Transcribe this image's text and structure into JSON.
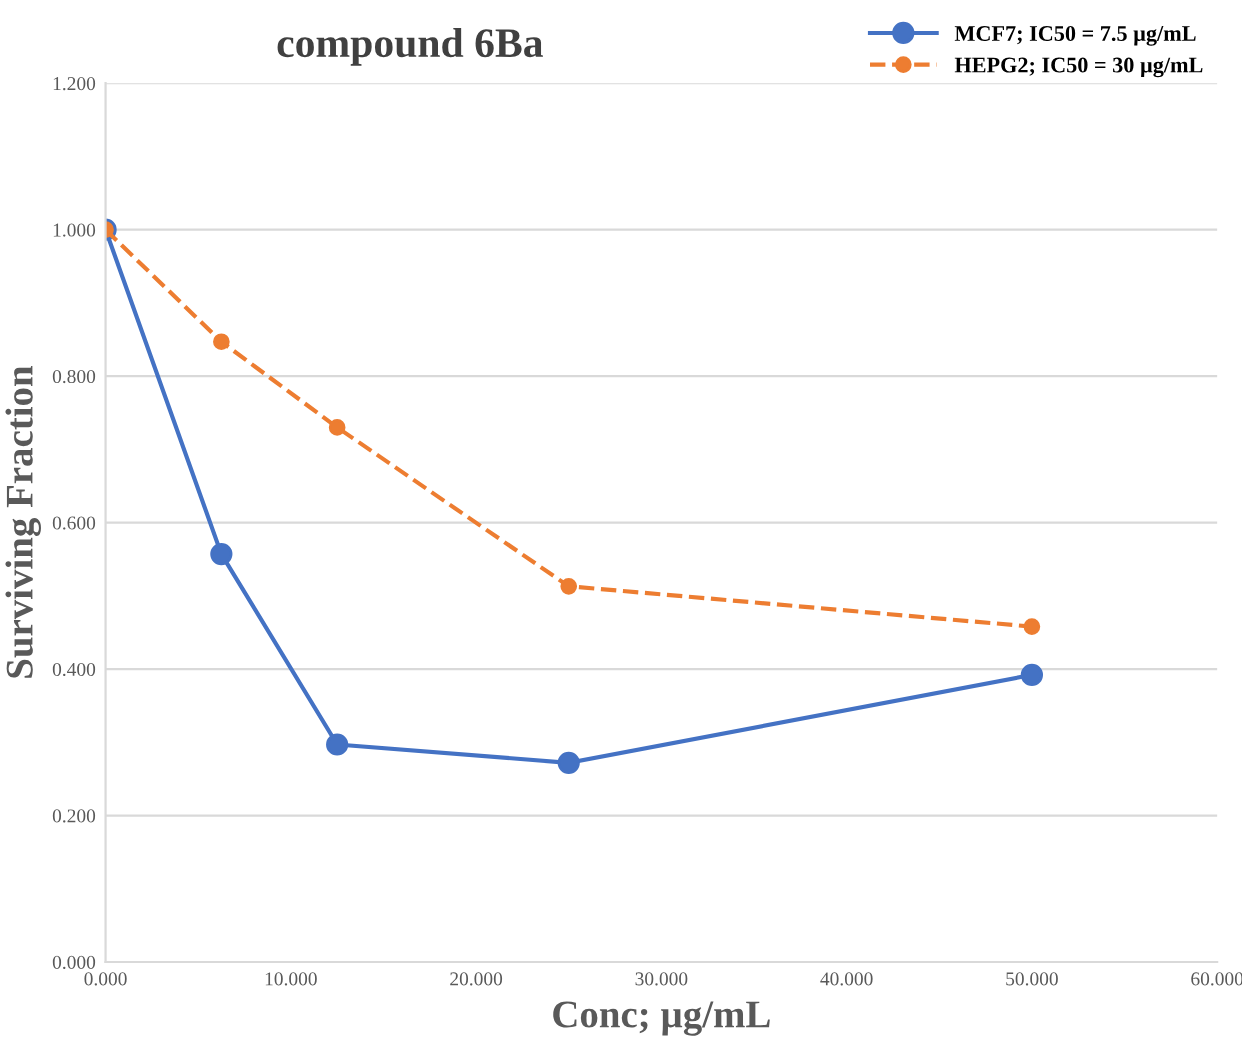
{
  "chart_data": {
    "type": "line",
    "title": "compound 6Ba",
    "xlabel": "Conc; µg/mL",
    "ylabel": "Surviving Fraction",
    "xlim": [
      0,
      60
    ],
    "xticks": [
      {
        "value": 0,
        "label": "0.000"
      },
      {
        "value": 10,
        "label": "10.000"
      },
      {
        "value": 20,
        "label": "20.000"
      },
      {
        "value": 30,
        "label": "30.000"
      },
      {
        "value": 40,
        "label": "40.000"
      },
      {
        "value": 50,
        "label": "50.000"
      },
      {
        "value": 60,
        "label": "60.000"
      }
    ],
    "ylim": [
      0,
      1.2
    ],
    "yticks": [
      {
        "value": 0,
        "label": "0.000"
      },
      {
        "value": 0.2,
        "label": "0.200"
      },
      {
        "value": 0.4,
        "label": "0.400"
      },
      {
        "value": 0.6,
        "label": "0.600"
      },
      {
        "value": 0.8,
        "label": "0.800"
      },
      {
        "value": 1.0,
        "label": "1.000"
      },
      {
        "value": 1.2,
        "label": "1.200"
      }
    ],
    "grid": "y",
    "legend": "top right",
    "marker": "circle",
    "x": [
      0,
      6.25,
      12.5,
      25,
      50
    ],
    "series": [
      {
        "name": "MCF7; IC50 = 7.5 µg/mL",
        "color": "#4472c4",
        "values": [
          1.0,
          0.557,
          0.297,
          0.272,
          0.392
        ],
        "line_style": "solid"
      },
      {
        "name": "HEPG2; IC50 = 30 µg/mL",
        "color": "#ed7d31",
        "values": [
          1.0,
          0.847,
          0.73,
          0.513,
          0.458
        ],
        "line_style": "dashed"
      }
    ]
  }
}
